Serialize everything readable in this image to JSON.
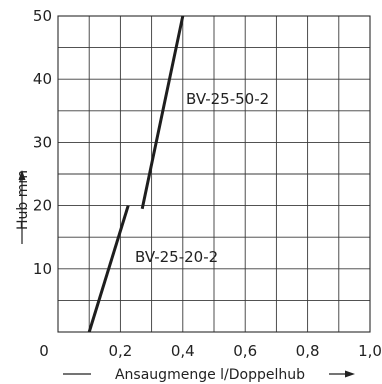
{
  "chart_data": {
    "type": "line",
    "xlabel": "Ansaugmenge l/Doppelhub",
    "ylabel": "Hub mm",
    "xlim": [
      0,
      1.0
    ],
    "ylim": [
      0,
      50
    ],
    "x_ticks": [
      "0",
      "0,2",
      "0,4",
      "0,6",
      "0,8",
      "1,0"
    ],
    "y_ticks": [
      "10",
      "20",
      "30",
      "40",
      "50"
    ],
    "x_grid_step": 0.1,
    "y_grid_step": 5,
    "grid": true,
    "series": [
      {
        "name": "BV-25-20-2",
        "points": [
          [
            0.1,
            0
          ],
          [
            0.225,
            20
          ]
        ]
      },
      {
        "name": "BV-25-50-2",
        "points": [
          [
            0.27,
            19.5
          ],
          [
            0.4,
            50
          ]
        ]
      }
    ]
  }
}
